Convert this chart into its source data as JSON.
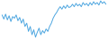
{
  "values": [
    -3.0,
    -5.5,
    -2.5,
    -6.0,
    -3.5,
    -7.0,
    -4.0,
    -5.0,
    -3.0,
    -6.5,
    -4.5,
    -8.0,
    -5.5,
    -10.0,
    -8.0,
    -13.0,
    -10.0,
    -15.0,
    -12.0,
    -16.5,
    -13.5,
    -11.0,
    -15.0,
    -12.5,
    -14.0,
    -11.5,
    -13.0,
    -10.0,
    -8.0,
    -5.0,
    -3.0,
    -1.5,
    0.5,
    2.0,
    0.5,
    2.5,
    1.0,
    3.0,
    1.5,
    2.0,
    3.5,
    2.0,
    4.0,
    2.5,
    3.5,
    2.0,
    4.5,
    3.0,
    4.0,
    2.5,
    4.5,
    3.0,
    5.0,
    3.5,
    4.5,
    3.0,
    5.5,
    4.0,
    5.0,
    3.5
  ],
  "line_color": "#4da6e0",
  "line_width": 0.7,
  "background_color": "#ffffff"
}
